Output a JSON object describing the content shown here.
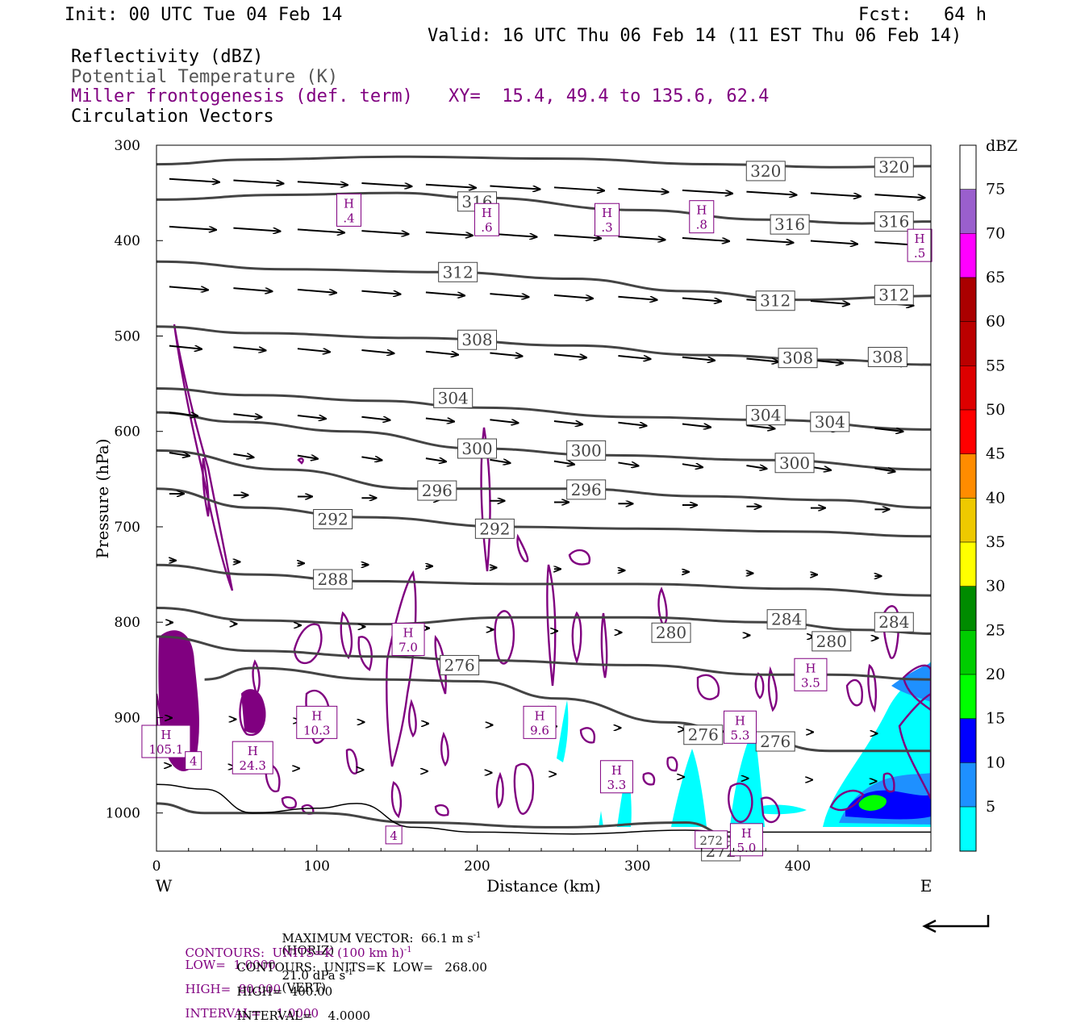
{
  "header": {
    "init": "Init: 00 UTC Tue 04 Feb 14",
    "fcst": "Fcst:   64 h",
    "valid": "Valid: 16 UTC Thu 06 Feb 14 (11 EST Thu 06 Feb 14)",
    "fields": [
      {
        "text": "Reflectivity (dBZ)",
        "color": "#000000"
      },
      {
        "text": "Potential Temperature (K)",
        "color": "#555555"
      },
      {
        "text": "Miller frontogenesis (def. term)",
        "color": "#800080"
      },
      {
        "text": "Circulation Vectors",
        "color": "#000000"
      }
    ],
    "xy": "XY=  15.4, 49.4 to 135.6, 62.4"
  },
  "chart_data": {
    "type": "cross-section",
    "ylabel": "Pressure (hPa)",
    "xlabel": "Distance (km)",
    "x_ticks": [
      0,
      100,
      200,
      300,
      400
    ],
    "y_ticks": [
      300,
      400,
      500,
      600,
      700,
      800,
      900,
      1000
    ],
    "xlim": [
      0,
      483
    ],
    "ylim": [
      300,
      1040
    ],
    "y_inverted": true,
    "left_end": "W",
    "right_end": "E",
    "theta_contours": [
      {
        "value": 320,
        "points": [
          [
            0,
            320
          ],
          [
            60,
            315
          ],
          [
            150,
            312
          ],
          [
            250,
            314
          ],
          [
            350,
            320
          ],
          [
            420,
            323
          ],
          [
            483,
            322
          ]
        ],
        "labels": [
          [
            380,
            327
          ],
          [
            460,
            323
          ]
        ]
      },
      {
        "value": 316,
        "points": [
          [
            0,
            357
          ],
          [
            80,
            352
          ],
          [
            150,
            350
          ],
          [
            200,
            355
          ],
          [
            300,
            368
          ],
          [
            380,
            378
          ],
          [
            440,
            382
          ],
          [
            483,
            380
          ]
        ],
        "labels": [
          [
            200,
            359
          ],
          [
            395,
            383
          ],
          [
            460,
            380
          ]
        ]
      },
      {
        "value": 312,
        "points": [
          [
            0,
            422
          ],
          [
            80,
            430
          ],
          [
            180,
            433
          ],
          [
            260,
            440
          ],
          [
            330,
            453
          ],
          [
            400,
            462
          ],
          [
            483,
            458
          ]
        ],
        "labels": [
          [
            188,
            433
          ],
          [
            386,
            463
          ],
          [
            460,
            457
          ]
        ]
      },
      {
        "value": 308,
        "points": [
          [
            0,
            490
          ],
          [
            60,
            497
          ],
          [
            160,
            502
          ],
          [
            260,
            510
          ],
          [
            340,
            520
          ],
          [
            420,
            525
          ],
          [
            483,
            530
          ]
        ],
        "labels": [
          [
            200,
            504
          ],
          [
            400,
            523
          ],
          [
            456,
            522
          ]
        ]
      },
      {
        "value": 304,
        "points": [
          [
            0,
            555
          ],
          [
            60,
            562
          ],
          [
            140,
            568
          ],
          [
            200,
            575
          ],
          [
            300,
            585
          ],
          [
            380,
            588
          ],
          [
            483,
            598
          ]
        ],
        "labels": [
          [
            185,
            565
          ],
          [
            380,
            583
          ],
          [
            420,
            590
          ]
        ]
      },
      {
        "value": 300,
        "points": [
          [
            0,
            580
          ],
          [
            50,
            590
          ],
          [
            120,
            600
          ],
          [
            200,
            618
          ],
          [
            280,
            625
          ],
          [
            380,
            630
          ],
          [
            483,
            640
          ]
        ],
        "labels": [
          [
            200,
            618
          ],
          [
            268,
            620
          ],
          [
            398,
            633
          ]
        ]
      },
      {
        "value": 296,
        "points": [
          [
            0,
            620
          ],
          [
            80,
            640
          ],
          [
            160,
            660
          ],
          [
            260,
            660
          ],
          [
            340,
            668
          ],
          [
            420,
            672
          ],
          [
            483,
            680
          ]
        ],
        "labels": [
          [
            175,
            662
          ],
          [
            268,
            661
          ]
        ]
      },
      {
        "value": 292,
        "points": [
          [
            0,
            660
          ],
          [
            60,
            680
          ],
          [
            130,
            690
          ],
          [
            220,
            700
          ],
          [
            300,
            702
          ],
          [
            400,
            705
          ],
          [
            483,
            710
          ]
        ],
        "labels": [
          [
            110,
            692
          ],
          [
            211,
            702
          ]
        ]
      },
      {
        "value": 288,
        "points": [
          [
            0,
            740
          ],
          [
            60,
            750
          ],
          [
            130,
            757
          ],
          [
            220,
            760
          ],
          [
            300,
            760
          ],
          [
            400,
            765
          ],
          [
            483,
            772
          ]
        ],
        "labels": [
          [
            110,
            755
          ]
        ]
      },
      {
        "value": 284,
        "points": [
          [
            0,
            785
          ],
          [
            60,
            798
          ],
          [
            140,
            802
          ],
          [
            220,
            795
          ],
          [
            300,
            795
          ],
          [
            380,
            800
          ],
          [
            440,
            808
          ],
          [
            483,
            812
          ]
        ],
        "labels": [
          [
            393,
            797
          ],
          [
            460,
            800
          ]
        ]
      },
      {
        "value": 280,
        "points": [
          [
            0,
            815
          ],
          [
            60,
            830
          ],
          [
            140,
            836
          ],
          [
            200,
            840
          ],
          [
            300,
            845
          ],
          [
            380,
            855
          ],
          [
            420,
            855
          ],
          [
            483,
            860
          ]
        ],
        "labels": [
          [
            321,
            811
          ],
          [
            421,
            820
          ]
        ]
      },
      {
        "value": 276,
        "points": [
          [
            30,
            860
          ],
          [
            60,
            848
          ],
          [
            140,
            860
          ],
          [
            200,
            862
          ],
          [
            250,
            880
          ],
          [
            320,
            905
          ],
          [
            360,
            915
          ],
          [
            420,
            935
          ],
          [
            483,
            935
          ]
        ],
        "labels": [
          [
            189,
            845
          ],
          [
            341,
            918
          ],
          [
            386,
            925
          ]
        ]
      },
      {
        "value": 272,
        "points": [
          [
            0,
            990
          ],
          [
            30,
            1000
          ],
          [
            100,
            1000
          ],
          [
            160,
            1010
          ],
          [
            250,
            1015
          ],
          [
            330,
            1010
          ],
          [
            360,
            1025
          ]
        ],
        "labels": [
          [
            352,
            1040
          ]
        ]
      }
    ],
    "reflectivity_colorbar": {
      "unit": "dBZ",
      "levels": [
        5,
        10,
        15,
        20,
        25,
        30,
        35,
        40,
        45,
        50,
        55,
        60,
        65,
        70,
        75
      ],
      "colors": [
        "#00ffff",
        "#1e90ff",
        "#0000ff",
        "#00ff00",
        "#00cd00",
        "#008b00",
        "#ffff00",
        "#eec900",
        "#ff8c00",
        "#ff0000",
        "#dd0000",
        "#bb0000",
        "#aa0000",
        "#ff00ff",
        "#9a5fcd"
      ]
    },
    "frontogenesis_maxima": [
      {
        "label": "H",
        "value": ".4",
        "x": 120,
        "p": 368
      },
      {
        "label": "H",
        "value": ".6",
        "x": 206,
        "p": 378
      },
      {
        "label": "H",
        "value": ".3",
        "x": 281,
        "p": 378
      },
      {
        "label": "H",
        "value": ".8",
        "x": 340,
        "p": 375
      },
      {
        "label": "H",
        "value": ".5",
        "x": 476,
        "p": 405
      },
      {
        "label": "H",
        "value": "7.0",
        "x": 157,
        "p": 818
      },
      {
        "label": "H",
        "value": "3.5",
        "x": 408,
        "p": 855
      },
      {
        "label": "H",
        "value": "105.1",
        "x": 6,
        "p": 925
      },
      {
        "label": "H",
        "value": "10.3",
        "x": 100,
        "p": 905
      },
      {
        "label": "H",
        "value": "24.3",
        "x": 60,
        "p": 942
      },
      {
        "label": "H",
        "value": "9.6",
        "x": 239,
        "p": 905
      },
      {
        "label": "H",
        "value": "5.3",
        "x": 364,
        "p": 910
      },
      {
        "label": "H",
        "value": "3.3",
        "x": 287,
        "p": 962
      },
      {
        "label": "H",
        "value": "5.0",
        "x": 368,
        "p": 1028
      }
    ],
    "low_labels": [
      {
        "value": "4",
        "x": 23,
        "p": 945
      },
      {
        "value": "4",
        "x": 148,
        "p": 1023
      },
      {
        "value": "272",
        "x": 346,
        "p": 1028
      }
    ]
  },
  "footer": {
    "line1_a": "MAXIMUM VECTOR:  66.1 m s",
    "line1_b": "(HORIZ)",
    "line1_c": "21.0 dPa s",
    "line1_d": "(VERT)",
    "line2_a": "CONTOURS:  UNITS=K (100 km h)",
    "line2_b": "LOW=  1.0000",
    "line2_c": "HIGH=  80.000",
    "line2_d": "INTERVAL=    1.0000",
    "line3_a": "CONTOURS:  UNITS=K  LOW=   268.00",
    "line3_b": "HIGH=  400.00",
    "line3_c": "INTERVAL=    4.0000",
    "sup": "-1"
  }
}
